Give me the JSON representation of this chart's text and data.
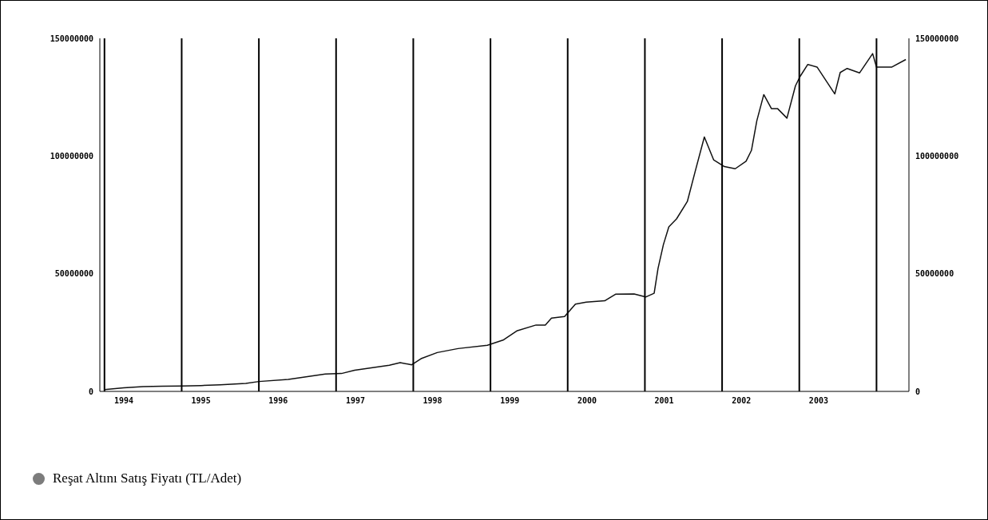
{
  "chart_data": {
    "type": "line",
    "x": [
      1994.0,
      1994.25,
      1994.5,
      1994.75,
      1995.0,
      1995.25,
      1995.5,
      1995.83,
      1996.0,
      1996.38,
      1996.86,
      1997.07,
      1997.24,
      1997.69,
      1997.83,
      1997.98,
      1998.1,
      1998.31,
      1998.58,
      1998.96,
      1999.17,
      1999.34,
      1999.59,
      1999.71,
      1999.79,
      1999.96,
      2000.1,
      2000.24,
      2000.48,
      2000.62,
      2000.86,
      2001.01,
      2001.12,
      2001.17,
      2001.24,
      2001.31,
      2001.41,
      2001.55,
      2001.65,
      2001.77,
      2001.89,
      2002.03,
      2002.17,
      2002.31,
      2002.38,
      2002.45,
      2002.54,
      2002.64,
      2002.72,
      2002.84,
      2002.95,
      2003.01,
      2003.11,
      2003.23,
      2003.46,
      2003.53,
      2003.62,
      2003.78,
      2003.95,
      2004.0,
      2004.2,
      2004.38
    ],
    "series": [
      {
        "name": "Reşat Altını Satış Fiyatı (TL/Adet)",
        "color": "#111111",
        "values": [
          800000,
          1500000,
          2000000,
          2200000,
          2300000,
          2500000,
          2800000,
          3400000,
          4200000,
          5100000,
          7400000,
          7600000,
          9000000,
          11100000,
          12200000,
          11300000,
          13900000,
          16500000,
          18200000,
          19600000,
          21900000,
          25700000,
          28200000,
          28200000,
          31100000,
          31800000,
          37100000,
          37900000,
          38500000,
          41300000,
          41400000,
          40100000,
          41700000,
          52200000,
          62400000,
          69900000,
          73300000,
          80700000,
          93300000,
          108100000,
          98400000,
          95500000,
          94600000,
          97800000,
          102400000,
          115000000,
          126100000,
          120100000,
          120100000,
          116100000,
          129800000,
          133800000,
          138900000,
          137800000,
          126400000,
          135500000,
          137200000,
          135300000,
          143500000,
          137800000,
          137800000,
          141000000
        ]
      }
    ],
    "xlim": [
      1993.94,
      2004.42
    ],
    "xticks": [
      {
        "value": 1994.25,
        "label": "1994"
      },
      {
        "value": 1995.25,
        "label": "1995"
      },
      {
        "value": 1996.25,
        "label": "1996"
      },
      {
        "value": 1997.25,
        "label": "1997"
      },
      {
        "value": 1998.25,
        "label": "1998"
      },
      {
        "value": 1999.25,
        "label": "1999"
      },
      {
        "value": 2000.25,
        "label": "2000"
      },
      {
        "value": 2001.25,
        "label": "2001"
      },
      {
        "value": 2002.25,
        "label": "2002"
      },
      {
        "value": 2003.25,
        "label": "2003"
      }
    ],
    "ylim": [
      0,
      150000000
    ],
    "yticks": [
      0,
      50000000,
      100000000,
      150000000
    ],
    "y2lim": [
      0,
      150000000
    ],
    "y2ticks": [
      0,
      50000000,
      100000000,
      150000000
    ],
    "ref_lines": [
      {
        "axis": "x",
        "value": 1994,
        "color": "#000000"
      },
      {
        "axis": "x",
        "value": 1995,
        "color": "#000000"
      },
      {
        "axis": "x",
        "value": 1996,
        "color": "#000000"
      },
      {
        "axis": "x",
        "value": 1997,
        "color": "#000000"
      },
      {
        "axis": "x",
        "value": 1998,
        "color": "#000000"
      },
      {
        "axis": "x",
        "value": 1999,
        "color": "#000000"
      },
      {
        "axis": "x",
        "value": 2000,
        "color": "#000000"
      },
      {
        "axis": "x",
        "value": 2001,
        "color": "#000000"
      },
      {
        "axis": "x",
        "value": 2002,
        "color": "#000000"
      },
      {
        "axis": "x",
        "value": 2003,
        "color": "#000000"
      },
      {
        "axis": "x",
        "value": 2004,
        "color": "#000000"
      }
    ],
    "legend": "bottom left",
    "marker": "none",
    "line_style": "solid",
    "grid": false
  }
}
